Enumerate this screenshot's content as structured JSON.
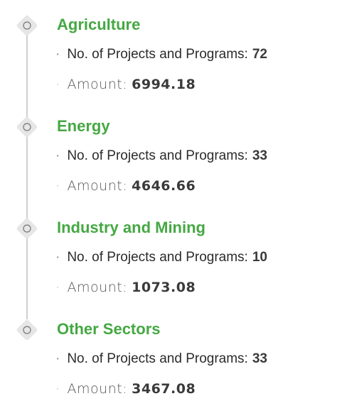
{
  "sections": [
    {
      "title": "Agriculture",
      "projects_label": "No. of Projects and Programs:",
      "projects": 72,
      "amount_label": "Amount:",
      "amount": 6994.18
    },
    {
      "title": "Energy",
      "projects_label": "No. of Projects and Programs:",
      "projects": 33,
      "amount_label": "Amount:",
      "amount": 4646.66
    },
    {
      "title": "Industry and Mining",
      "projects_label": "No. of Projects and Programs:",
      "projects": 10,
      "amount_label": "Amount:",
      "amount": 1073.08
    },
    {
      "title": "Other Sectors",
      "projects_label": "No. of Projects and Programs:",
      "projects": 33,
      "amount_label": "Amount:",
      "amount": 3467.08
    }
  ]
}
